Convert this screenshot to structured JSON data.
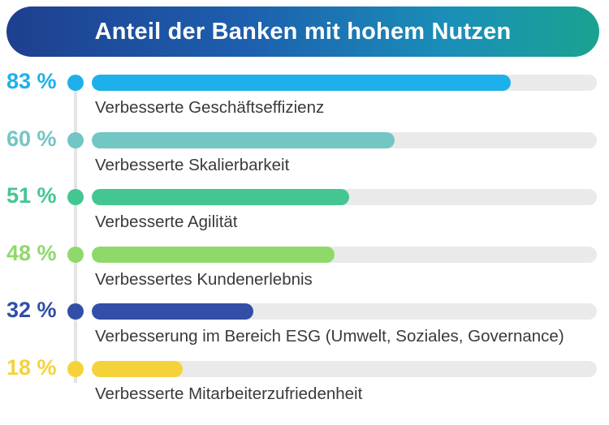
{
  "chart_data": {
    "type": "bar",
    "title": "Anteil der Banken mit hohem Nutzen",
    "unit": "%",
    "xlim": [
      0,
      100
    ],
    "items": [
      {
        "value": 83,
        "label": "Verbesserte Geschäftseffizienz",
        "display": "83 %",
        "color": "#1eb0ea"
      },
      {
        "value": 60,
        "label": "Verbesserte Skalierbarkeit",
        "display": "60 %",
        "color": "#72c6c4"
      },
      {
        "value": 51,
        "label": "Verbesserte Agilität",
        "display": "51 %",
        "color": "#43c691"
      },
      {
        "value": 48,
        "label": "Verbessertes Kundenerlebnis",
        "display": "48 %",
        "color": "#8ed96a"
      },
      {
        "value": 32,
        "label": "Verbesserung im Bereich ESG (Umwelt, Soziales, Governance)",
        "display": "32 %",
        "color": "#324ea6"
      },
      {
        "value": 18,
        "label": "Verbesserte Mitarbeiterzufriedenheit",
        "display": "18 %",
        "color": "#f6d23a"
      }
    ]
  }
}
